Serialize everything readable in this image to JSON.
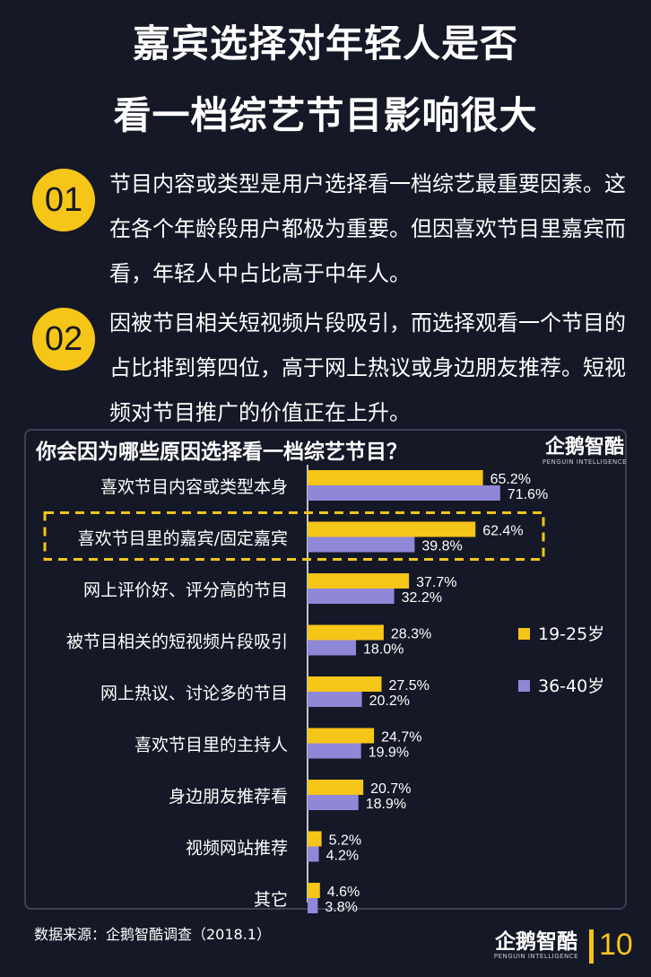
{
  "header": {
    "title_line1": "嘉宾选择对年轻人是否",
    "title_line2": "看一档综艺节目影响很大"
  },
  "points": [
    {
      "num": "01",
      "text": "节目内容或类型是用户选择看一档综艺最重要因素。这在各个年龄段用户都极为重要。但因喜欢节目里嘉宾而看，年轻人中占比高于中年人。"
    },
    {
      "num": "02",
      "text": "因被节目相关短视频片段吸引，而选择观看一个节目的占比排到第四位，高于网上热议或身边朋友推荐。短视频对节目推广的价值正在上升。"
    }
  ],
  "logo": {
    "main": "企鹅智酷",
    "sub": "PENGUIN INTELLIGENCE"
  },
  "colors": {
    "accent": "#f5c518",
    "series2": "#8f88d8",
    "background": "#151826",
    "highlight_border": "#f5c518"
  },
  "chart_data": {
    "type": "bar",
    "orientation": "horizontal",
    "title": "你会因为哪些原因选择看一档综艺节目？",
    "categories": [
      "喜欢节目内容或类型本身",
      "喜欢节目里的嘉宾/固定嘉宾",
      "网上评价好、评分高的节目",
      "被节目相关的短视频片段吸引",
      "网上热议、讨论多的节目",
      "喜欢节目里的主持人",
      "身边朋友推荐看",
      "视频网站推荐",
      "其它"
    ],
    "series": [
      {
        "name": "19-25岁",
        "color": "#f5c518",
        "values": [
          65.2,
          62.4,
          37.7,
          28.3,
          27.5,
          24.7,
          20.7,
          5.2,
          4.6
        ]
      },
      {
        "name": "36-40岁",
        "color": "#8f88d8",
        "values": [
          71.6,
          39.8,
          32.2,
          18.0,
          20.2,
          19.9,
          18.9,
          4.2,
          3.8
        ]
      }
    ],
    "value_suffix": "%",
    "highlighted_category_index": 1,
    "legend_position": "right",
    "xlim": [
      0,
      100
    ]
  },
  "footer": {
    "source": "数据来源：企鹅智酷调查（2018.1）",
    "page": "10"
  }
}
